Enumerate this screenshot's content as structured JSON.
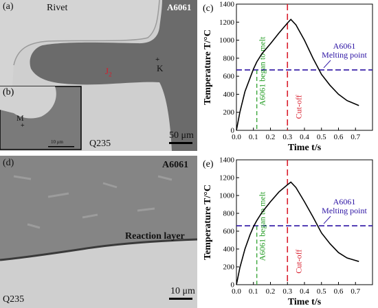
{
  "micrograph_top": {
    "panel_label": "(a)",
    "rivet_label": "Rivet",
    "base_top_label": "A6061",
    "base_bottom_label": "Q235",
    "point_k": "K",
    "joint_label": "J",
    "joint_subscript": "2",
    "scale_bar": "50 μm",
    "inset": {
      "panel_label": "(b)",
      "point_m": "M",
      "scale_bar": "10 μm"
    }
  },
  "micrograph_bottom": {
    "panel_label": "(d)",
    "base_top_label": "A6061",
    "base_bottom_label": "Q235",
    "reaction_layer_label": "Reaction layer",
    "scale_bar": "10 μm"
  },
  "chart_data": [
    {
      "type": "line",
      "panel_label": "(c)",
      "xlabel": "Time t/s",
      "ylabel": "Temperature T/°C",
      "xlim": [
        0.0,
        0.8
      ],
      "ylim": [
        0,
        1400
      ],
      "xticks": [
        "0.0",
        "0.1",
        "0.2",
        "0.3",
        "0.4",
        "0.5",
        "0.6",
        "0.7"
      ],
      "yticks": [
        "0",
        "200",
        "400",
        "600",
        "800",
        "1000",
        "1200",
        "1400"
      ],
      "series": [
        {
          "x": [
            0.0,
            0.02,
            0.05,
            0.08,
            0.1,
            0.12,
            0.15,
            0.2,
            0.25,
            0.3,
            0.32,
            0.35,
            0.4,
            0.45,
            0.5,
            0.55,
            0.6,
            0.65,
            0.72
          ],
          "y": [
            0,
            200,
            430,
            580,
            680,
            760,
            850,
            960,
            1080,
            1190,
            1230,
            1170,
            1000,
            800,
            620,
            500,
            400,
            330,
            275
          ]
        }
      ],
      "melting_point": 670,
      "melting_point_label": "A6061\nMelting point",
      "melt_start_time": 0.12,
      "melt_start_label": "A6061 began to melt",
      "cutoff_time": 0.3,
      "cutoff_label": "Cut-off",
      "colors": {
        "curve": "#000000",
        "melting": "#2b12a3",
        "melt_start": "#1f9a1f",
        "cutoff": "#d81b2a"
      }
    },
    {
      "type": "line",
      "panel_label": "(e)",
      "xlabel": "Time t/s",
      "ylabel": "Temperature T/°C",
      "xlim": [
        0.0,
        0.8
      ],
      "ylim": [
        0,
        1400
      ],
      "xticks": [
        "0.0",
        "0.1",
        "0.2",
        "0.3",
        "0.4",
        "0.5",
        "0.6",
        "0.7"
      ],
      "yticks": [
        "0",
        "200",
        "400",
        "600",
        "800",
        "1000",
        "1200",
        "1400"
      ],
      "series": [
        {
          "x": [
            0.0,
            0.02,
            0.05,
            0.08,
            0.1,
            0.12,
            0.15,
            0.2,
            0.25,
            0.3,
            0.32,
            0.35,
            0.4,
            0.45,
            0.5,
            0.55,
            0.6,
            0.65,
            0.72
          ],
          "y": [
            0,
            190,
            400,
            560,
            650,
            720,
            810,
            930,
            1040,
            1120,
            1150,
            1090,
            930,
            760,
            580,
            460,
            360,
            300,
            260
          ]
        }
      ],
      "melting_point": 660,
      "melting_point_label": "A6061\nMelting point",
      "melt_start_time": 0.12,
      "melt_start_label": "A6061 began to melt",
      "cutoff_time": 0.3,
      "cutoff_label": "Cut-off",
      "colors": {
        "curve": "#000000",
        "melting": "#2b12a3",
        "melt_start": "#1f9a1f",
        "cutoff": "#d81b2a"
      }
    }
  ]
}
